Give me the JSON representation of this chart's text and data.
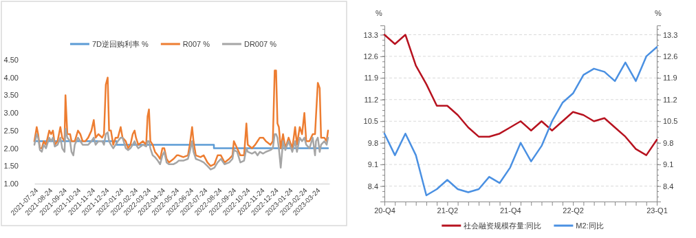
{
  "chart_data": [
    {
      "type": "line",
      "legend": "top",
      "ylim": [
        1,
        4.5
      ],
      "yticks": [
        {
          "value": 1,
          "label": "1.00"
        },
        {
          "value": 1.5,
          "label": "1.50"
        },
        {
          "value": 2,
          "label": "2.00"
        },
        {
          "value": 2.5,
          "label": "2.50"
        },
        {
          "value": 3,
          "label": "3.00"
        },
        {
          "value": 3.5,
          "label": "3.50"
        },
        {
          "value": 4,
          "label": "4.00"
        },
        {
          "value": 4.5,
          "label": "4.50"
        }
      ],
      "xlim": [
        "2021-07-24",
        "2023-04-21"
      ],
      "xticks": [
        "2021-07-24",
        "2021-08-24",
        "2021-09-24",
        "2021-10-24",
        "2021-11-24",
        "2021-12-24",
        "2022-01-24",
        "2022-02-24",
        "2022-03-24",
        "2022-04-24",
        "2022-05-24",
        "2022-06-24",
        "2022-07-24",
        "2022-08-24",
        "2022-09-24",
        "2022-10-24",
        "2022-11-24",
        "2022-12-24",
        "2023-01-24",
        "2023-02-24",
        "2023-03-24"
      ],
      "x": [
        "2021-07-24",
        "2021-07-29",
        "2021-08-01",
        "2021-08-05",
        "2021-08-09",
        "2021-08-13",
        "2021-08-18",
        "2021-08-25",
        "2021-08-29",
        "2021-09-02",
        "2021-09-06",
        "2021-09-12",
        "2021-09-18",
        "2021-09-22",
        "2021-09-27",
        "2021-09-29",
        "2021-10-03",
        "2021-10-09",
        "2021-10-12",
        "2021-10-16",
        "2021-10-19",
        "2021-10-26",
        "2021-10-31",
        "2021-11-05",
        "2021-11-11",
        "2021-11-17",
        "2021-11-24",
        "2021-11-29",
        "2021-12-03",
        "2021-12-09",
        "2021-12-17",
        "2021-12-21",
        "2021-12-25",
        "2021-12-29",
        "2022-01-01",
        "2022-01-05",
        "2022-01-10",
        "2022-01-15",
        "2022-01-20",
        "2022-01-26",
        "2022-01-30",
        "2022-02-06",
        "2022-02-11",
        "2022-02-16",
        "2022-02-21",
        "2022-02-25",
        "2022-02-28",
        "2022-03-05",
        "2022-03-15",
        "2022-03-22",
        "2022-03-25",
        "2022-03-28",
        "2022-03-31",
        "2022-04-05",
        "2022-04-10",
        "2022-04-16",
        "2022-04-21",
        "2022-04-26",
        "2022-04-30",
        "2022-05-05",
        "2022-05-10",
        "2022-05-20",
        "2022-05-27",
        "2022-05-31",
        "2022-06-10",
        "2022-06-20",
        "2022-06-24",
        "2022-06-29",
        "2022-07-02",
        "2022-07-07",
        "2022-07-17",
        "2022-07-24",
        "2022-08-01",
        "2022-08-08",
        "2022-08-16",
        "2022-08-23",
        "2022-08-30",
        "2022-09-07",
        "2022-09-17",
        "2022-09-24",
        "2022-09-27",
        "2022-10-04",
        "2022-10-11",
        "2022-10-19",
        "2022-10-24",
        "2022-10-27",
        "2022-11-05",
        "2022-11-12",
        "2022-11-17",
        "2022-11-22",
        "2022-11-29",
        "2022-12-05",
        "2022-12-15",
        "2022-12-20",
        "2022-12-24",
        "2022-12-27",
        "2022-12-30",
        "2023-01-02",
        "2023-01-06",
        "2023-01-11",
        "2023-01-16",
        "2023-01-23",
        "2023-01-31",
        "2023-02-06",
        "2023-02-10",
        "2023-02-16",
        "2023-02-21",
        "2023-02-26",
        "2023-03-02",
        "2023-03-09",
        "2023-03-16",
        "2023-03-21",
        "2023-03-23",
        "2023-03-27",
        "2023-03-31",
        "2023-04-03",
        "2023-04-10",
        "2023-04-15",
        "2023-04-18"
      ],
      "series": [
        {
          "name": "7D逆回购利率 %",
          "type": "step",
          "color": "#5b9bd5",
          "x": [
            "2021-07-24",
            "2022-01-17",
            "2022-08-15",
            "2023-04-18"
          ],
          "values": [
            2.2,
            2.1,
            2.0,
            2.0
          ]
        },
        {
          "name": "R007 %",
          "color": "#ed7d31",
          "values": [
            2.2,
            2.6,
            2.4,
            2.0,
            2.0,
            2.2,
            2.1,
            2.5,
            2.4,
            2.5,
            2.1,
            2.2,
            2.6,
            2.3,
            2.2,
            3.5,
            2.4,
            2.4,
            2.2,
            2.2,
            2.2,
            2.5,
            2.4,
            2.2,
            2.2,
            2.3,
            2.5,
            2.8,
            2.3,
            2.4,
            2.3,
            2.4,
            3.8,
            4.0,
            2.5,
            2.5,
            2.1,
            2.3,
            2.3,
            2.6,
            2.3,
            2.2,
            2.0,
            2.1,
            2.4,
            2.5,
            2.3,
            2.1,
            2.2,
            2.1,
            2.9,
            3.1,
            2.2,
            2.1,
            1.9,
            1.8,
            1.7,
            2.0,
            2.0,
            1.7,
            1.6,
            1.7,
            1.8,
            1.8,
            1.75,
            1.8,
            2.1,
            2.6,
            2.2,
            1.8,
            1.75,
            1.8,
            1.6,
            1.5,
            1.55,
            1.8,
            1.8,
            1.6,
            1.7,
            1.8,
            2.2,
            2.0,
            1.8,
            1.8,
            2.7,
            2.1,
            2.0,
            2.1,
            2.2,
            2.3,
            2.3,
            2.2,
            2.1,
            2.2,
            4.2,
            4.2,
            2.7,
            2.6,
            2.0,
            2.4,
            2.0,
            2.3,
            2.0,
            2.6,
            2.1,
            2.6,
            2.4,
            3.0,
            2.2,
            2.2,
            2.4,
            2.4,
            2.9,
            3.85,
            3.7,
            2.3,
            2.3,
            2.2,
            2.5
          ]
        },
        {
          "name": "DR007 %",
          "color": "#a5a5a5",
          "values": [
            2.1,
            2.4,
            2.3,
            1.95,
            1.9,
            2.1,
            2.0,
            2.3,
            2.2,
            2.3,
            2.05,
            2.1,
            2.3,
            2.0,
            1.9,
            2.55,
            2.3,
            2.2,
            1.9,
            1.8,
            2.1,
            2.3,
            2.2,
            2.1,
            2.1,
            2.1,
            2.2,
            2.3,
            2.1,
            2.2,
            2.2,
            2.1,
            2.4,
            2.45,
            2.2,
            2.1,
            2.0,
            2.1,
            2.2,
            2.3,
            2.3,
            2.0,
            1.95,
            2.0,
            2.1,
            2.2,
            2.1,
            2.0,
            2.1,
            2.05,
            2.2,
            2.2,
            2.0,
            1.8,
            1.75,
            1.65,
            1.55,
            1.8,
            1.9,
            1.6,
            1.55,
            1.55,
            1.6,
            1.65,
            1.65,
            1.7,
            1.9,
            2.2,
            1.9,
            1.7,
            1.65,
            1.6,
            1.5,
            1.4,
            1.45,
            1.6,
            1.7,
            1.55,
            1.6,
            1.7,
            1.95,
            1.9,
            1.6,
            1.65,
            2.0,
            1.9,
            1.85,
            1.9,
            1.8,
            1.9,
            1.85,
            1.9,
            1.95,
            2.0,
            2.4,
            2.4,
            2.3,
            2.0,
            1.45,
            2.2,
            1.95,
            2.2,
            1.9,
            2.2,
            1.9,
            2.3,
            2.2,
            2.3,
            2.1,
            2.0,
            2.3,
            1.8,
            2.2,
            2.3,
            1.9,
            2.1,
            2.2,
            2.1,
            2.3
          ]
        }
      ]
    },
    {
      "type": "line",
      "legend": "bottom",
      "grid": "y",
      "ylabel": "%",
      "y2label": "%",
      "categories": [
        "20-Q4",
        null,
        null,
        null,
        null,
        null,
        "21-Q2",
        null,
        null,
        null,
        null,
        null,
        "21-Q4",
        null,
        null,
        null,
        null,
        null,
        "22-Q2",
        null,
        null,
        null,
        null,
        null,
        null,
        null,
        "23-Q1"
      ],
      "ylim": [
        7.9,
        13.6
      ],
      "yticks": [
        8.4,
        9.1,
        9.8,
        10.5,
        11.2,
        11.9,
        12.6,
        13.3
      ],
      "y2lim": [
        7.9,
        13.6
      ],
      "y2ticks": [
        8.4,
        9.1,
        9.8,
        10.5,
        11.2,
        11.9,
        12.6,
        13.3
      ],
      "series": [
        {
          "name": "社会融资规模存量:同比",
          "color": "#b7121f",
          "values": [
            13.3,
            13.0,
            13.3,
            12.3,
            11.7,
            11.0,
            11.0,
            10.7,
            10.3,
            10.0,
            10.0,
            10.1,
            10.3,
            10.5,
            10.2,
            10.5,
            10.2,
            10.5,
            10.8,
            10.7,
            10.5,
            10.6,
            10.3,
            10.0,
            9.6,
            9.4,
            9.9
          ]
        },
        {
          "name": "M2:同比",
          "color": "#4a90e2",
          "values": [
            10.1,
            9.4,
            10.1,
            9.4,
            8.1,
            8.3,
            8.6,
            8.3,
            8.2,
            8.3,
            8.7,
            8.5,
            9.0,
            9.8,
            9.2,
            9.7,
            10.5,
            11.1,
            11.4,
            12.0,
            12.2,
            12.1,
            11.8,
            12.4,
            11.8,
            12.6,
            12.9
          ]
        }
      ]
    }
  ]
}
